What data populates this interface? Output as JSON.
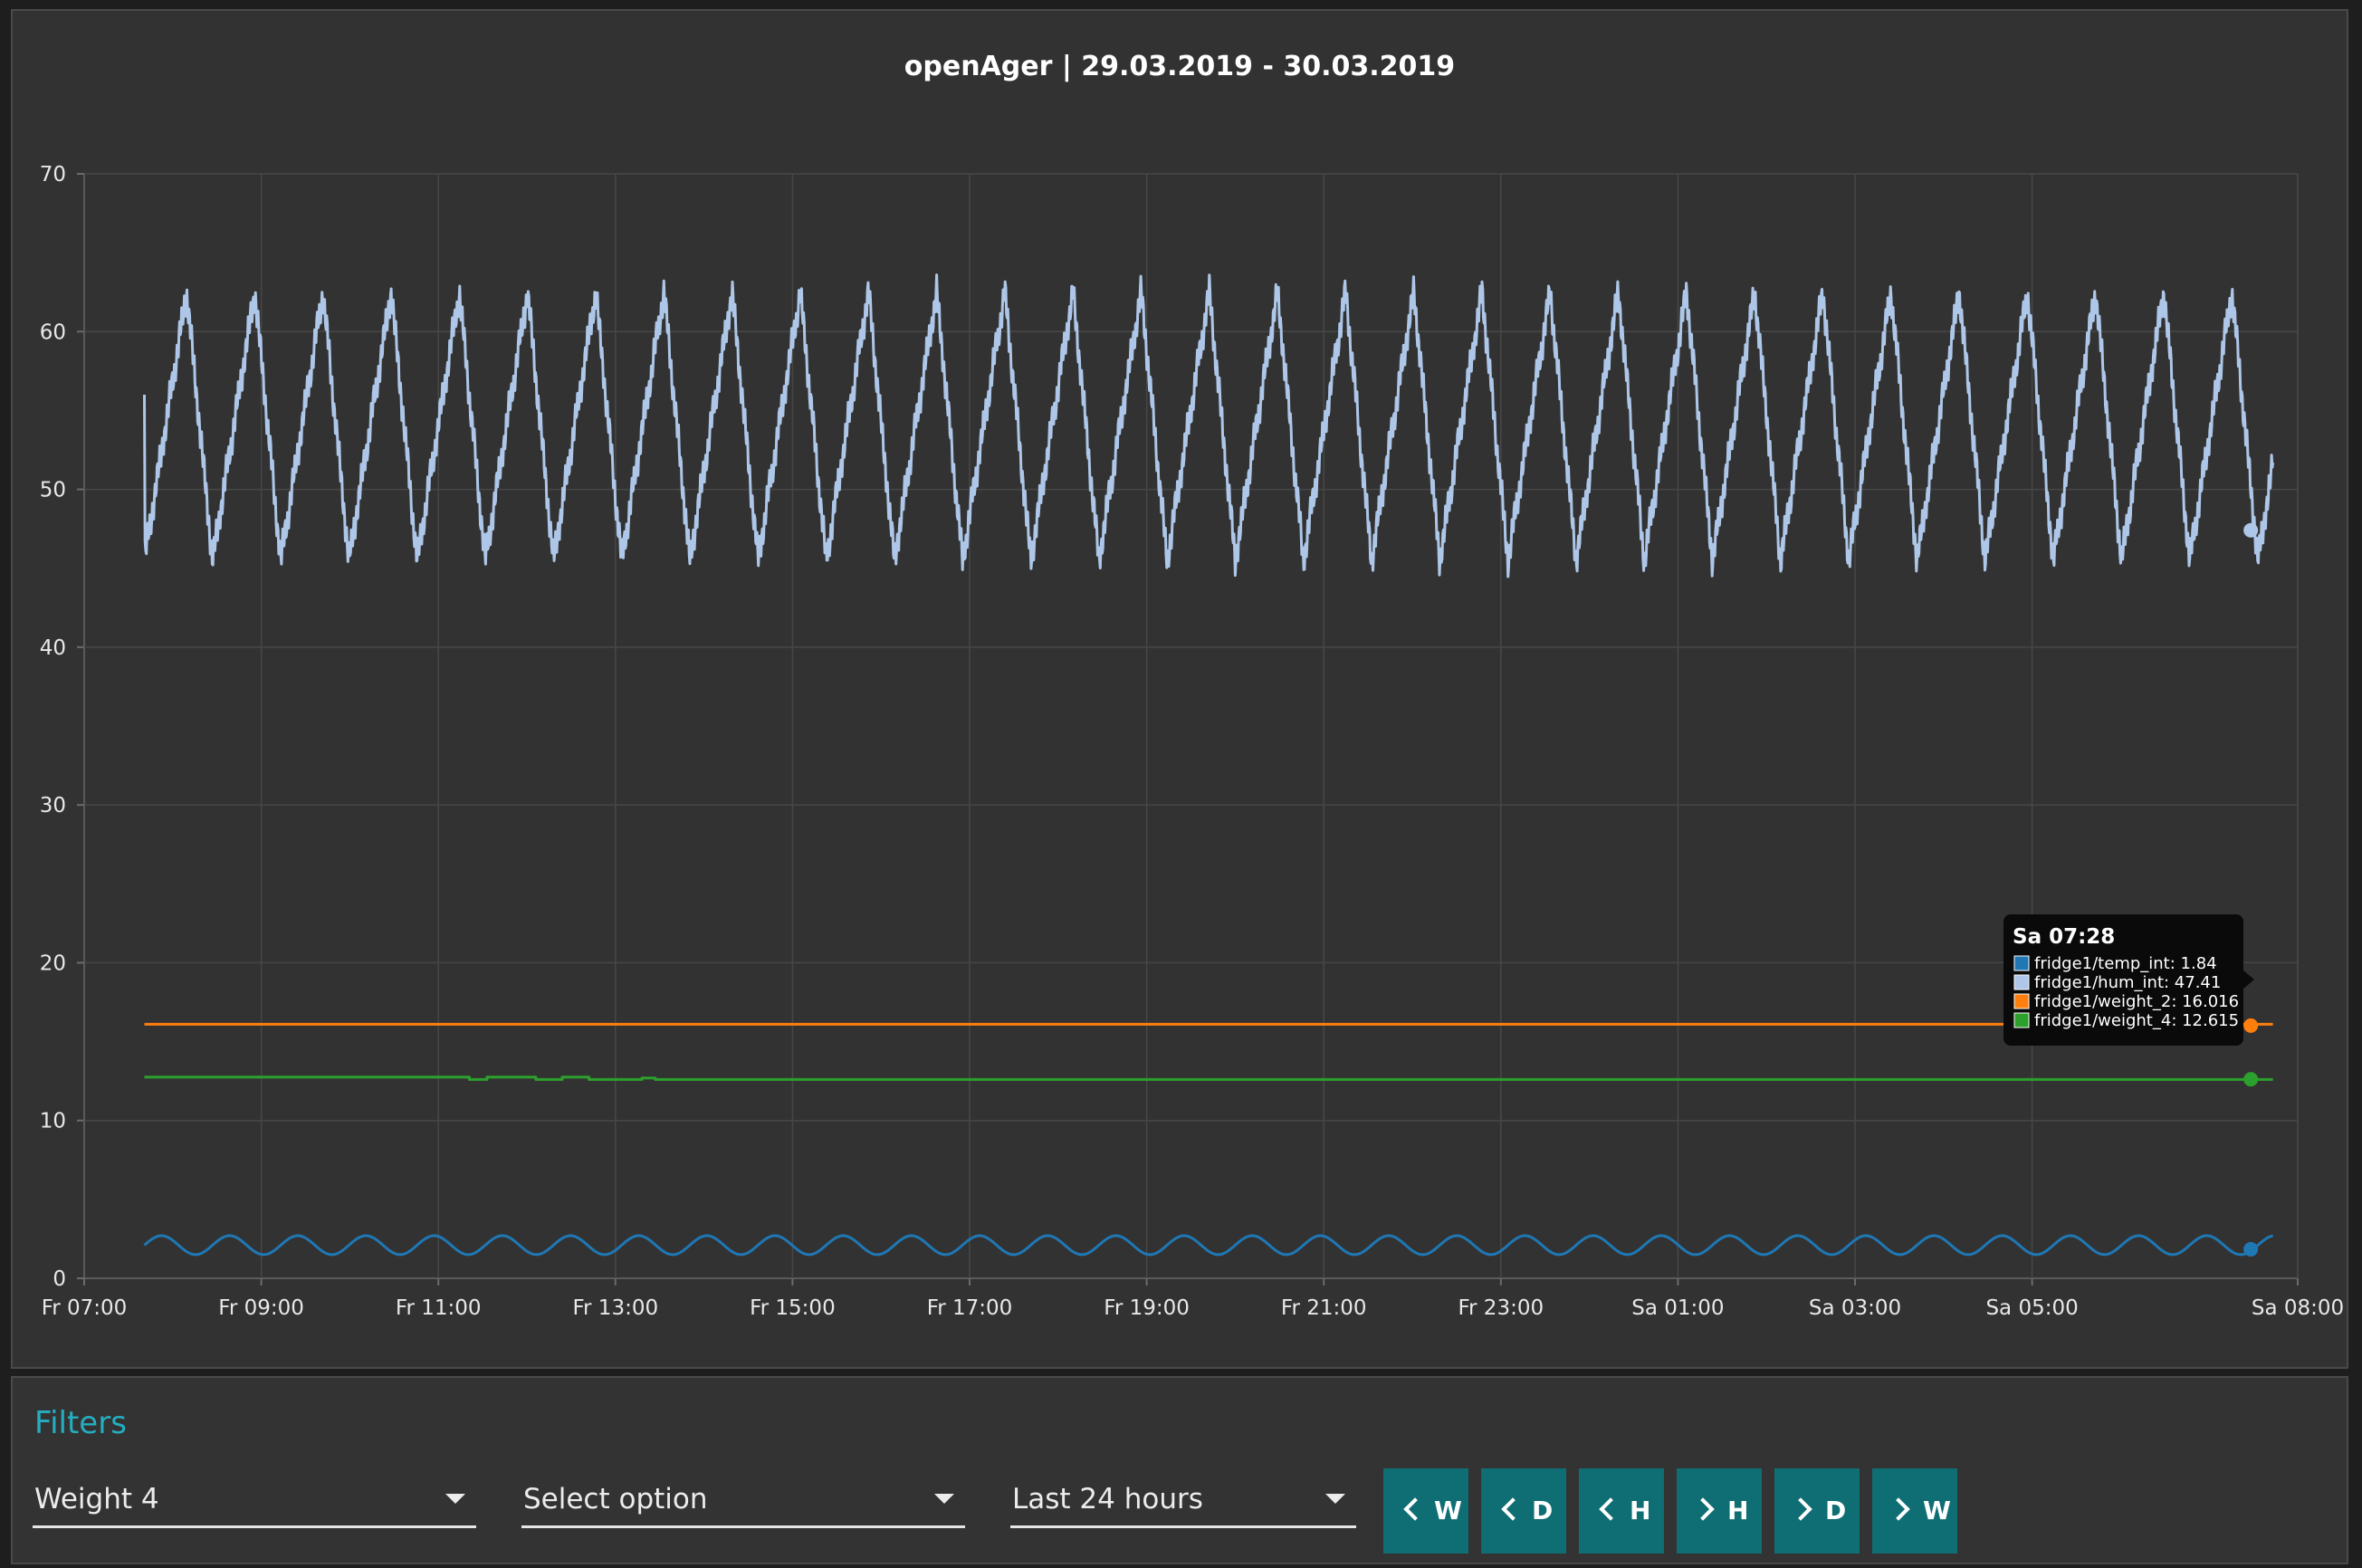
{
  "chart_data": {
    "type": "line",
    "title": "openAger | 29.03.2019 - 30.03.2019",
    "xlabel": "",
    "ylabel": "",
    "x_ticks": [
      "Fr 07:00",
      "Fr 09:00",
      "Fr 11:00",
      "Fr 13:00",
      "Fr 15:00",
      "Fr 17:00",
      "Fr 19:00",
      "Fr 21:00",
      "Fr 23:00",
      "Sa 01:00",
      "Sa 03:00",
      "Sa 05:00",
      "Sa 08:00"
    ],
    "y_ticks": [
      0,
      10,
      20,
      30,
      40,
      50,
      60,
      70
    ],
    "ylim": [
      0,
      70
    ],
    "x_range_hours": [
      7.0,
      32.0
    ],
    "data_range_hours": [
      7.68,
      31.72
    ],
    "grid": true,
    "series": [
      {
        "name": "fridge1/temp_int",
        "color": "#1f77b4",
        "shape": "oscillating",
        "min": 1.5,
        "max": 2.7,
        "period_hours": 0.77,
        "last_value": 1.84
      },
      {
        "name": "fridge1/hum_int",
        "color": "#aec7e8",
        "shape": "oscillating",
        "min": 45.5,
        "max": 62.5,
        "period_hours": 0.77,
        "start_value": 56.0,
        "last_value": 47.41,
        "end_value": 51.7
      },
      {
        "name": "fridge1/weight_2",
        "color": "#ff7f0e",
        "shape": "flat",
        "value": 16.1,
        "last_value": 16.016
      },
      {
        "name": "fridge1/weight_4",
        "color": "#2ca02c",
        "shape": "steps",
        "points": [
          [
            7.68,
            12.75
          ],
          [
            11.35,
            12.75
          ],
          [
            11.35,
            12.6
          ],
          [
            11.55,
            12.6
          ],
          [
            11.55,
            12.75
          ],
          [
            12.1,
            12.75
          ],
          [
            12.1,
            12.6
          ],
          [
            12.4,
            12.6
          ],
          [
            12.4,
            12.75
          ],
          [
            12.7,
            12.75
          ],
          [
            12.7,
            12.6
          ],
          [
            13.3,
            12.6
          ],
          [
            13.3,
            12.7
          ],
          [
            13.45,
            12.7
          ],
          [
            13.45,
            12.6
          ],
          [
            31.72,
            12.6
          ]
        ],
        "last_value": 12.615
      }
    ],
    "tooltip": {
      "title": "Sa 07:28",
      "x_hours": 31.47,
      "entries": [
        {
          "label": "fridge1/temp_int: 1.84",
          "color": "#1f77b4"
        },
        {
          "label": "fridge1/hum_int: 47.41",
          "color": "#aec7e8"
        },
        {
          "label": "fridge1/weight_2: 16.016",
          "color": "#ff7f0e"
        },
        {
          "label": "fridge1/weight_4: 12.615",
          "color": "#2ca02c"
        }
      ]
    }
  },
  "filters": {
    "title": "Filters",
    "selects": [
      {
        "value": "Weight 4"
      },
      {
        "value": "Select option"
      },
      {
        "value": "Last 24 hours"
      }
    ],
    "nav_buttons": [
      {
        "label": "W",
        "direction": "back"
      },
      {
        "label": "D",
        "direction": "back"
      },
      {
        "label": "H",
        "direction": "back"
      },
      {
        "label": "H",
        "direction": "forward"
      },
      {
        "label": "D",
        "direction": "forward"
      },
      {
        "label": "W",
        "direction": "forward"
      }
    ]
  }
}
